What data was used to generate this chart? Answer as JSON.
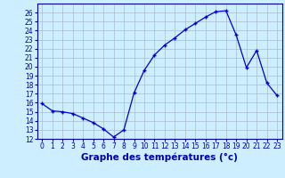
{
  "hours": [
    0,
    1,
    2,
    3,
    4,
    5,
    6,
    7,
    8,
    9,
    10,
    11,
    12,
    13,
    14,
    15,
    16,
    17,
    18,
    19,
    20,
    21,
    22,
    23
  ],
  "temperatures": [
    15.9,
    15.1,
    15.0,
    14.8,
    14.3,
    13.8,
    13.1,
    12.2,
    13.0,
    17.1,
    19.6,
    21.3,
    22.4,
    23.2,
    24.1,
    24.8,
    25.5,
    26.1,
    26.2,
    23.5,
    19.9,
    21.8,
    18.2,
    16.8
  ],
  "line_color": "#0000cc",
  "marker": "+",
  "bg_color": "#cceeff",
  "grid_color": "#aabbcc",
  "xlabel": "Graphe des températures (°c)",
  "xlim": [
    -0.5,
    23.5
  ],
  "ylim": [
    12,
    27
  ],
  "yticks": [
    12,
    13,
    14,
    15,
    16,
    17,
    18,
    19,
    20,
    21,
    22,
    23,
    24,
    25,
    26
  ],
  "xticks": [
    0,
    1,
    2,
    3,
    4,
    5,
    6,
    7,
    8,
    9,
    10,
    11,
    12,
    13,
    14,
    15,
    16,
    17,
    18,
    19,
    20,
    21,
    22,
    23
  ],
  "tick_label_fontsize": 5.5,
  "xlabel_fontsize": 7.5,
  "axis_label_color": "#0000aa",
  "tick_color": "#0000aa",
  "spine_color": "#0000aa"
}
